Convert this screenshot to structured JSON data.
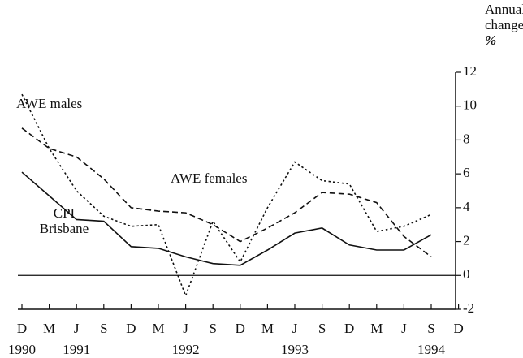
{
  "chart_data": {
    "type": "line",
    "y_axis_label": [
      "Annual",
      "change",
      "%"
    ],
    "categories": [
      "D",
      "M",
      "J",
      "S",
      "D",
      "M",
      "J",
      "S",
      "D",
      "M",
      "J",
      "S",
      "D",
      "M",
      "J",
      "S",
      "D"
    ],
    "years": [
      "1990",
      null,
      "1991",
      null,
      null,
      null,
      "1992",
      null,
      null,
      null,
      "1993",
      null,
      null,
      null,
      null,
      "1994",
      null
    ],
    "series": [
      {
        "name": "AWE males",
        "color": "#111111",
        "dash": "dotted",
        "values": [
          10.7,
          7.5,
          5.0,
          3.5,
          2.9,
          3.0,
          -1.2,
          3.2,
          0.8,
          4.0,
          6.7,
          5.6,
          5.4,
          2.6,
          2.9,
          3.6,
          null
        ]
      },
      {
        "name": "AWE females",
        "color": "#111111",
        "dash": "dashed",
        "values": [
          8.7,
          7.5,
          7.0,
          5.7,
          4.0,
          3.8,
          3.7,
          3.0,
          2.0,
          2.8,
          3.7,
          4.9,
          4.8,
          4.3,
          2.3,
          1.1,
          null
        ]
      },
      {
        "name": "CPI Brisbane",
        "color": "#111111",
        "dash": "solid",
        "values": [
          6.1,
          4.7,
          3.3,
          3.2,
          1.7,
          1.6,
          1.1,
          0.7,
          0.6,
          1.5,
          2.5,
          2.8,
          1.8,
          1.5,
          1.5,
          2.4,
          null
        ]
      }
    ],
    "ylim": [
      -2,
      12
    ],
    "yticks": [
      -2,
      0,
      2,
      4,
      6,
      8,
      10,
      12
    ],
    "hline": 0,
    "y_axis_side": "right"
  }
}
